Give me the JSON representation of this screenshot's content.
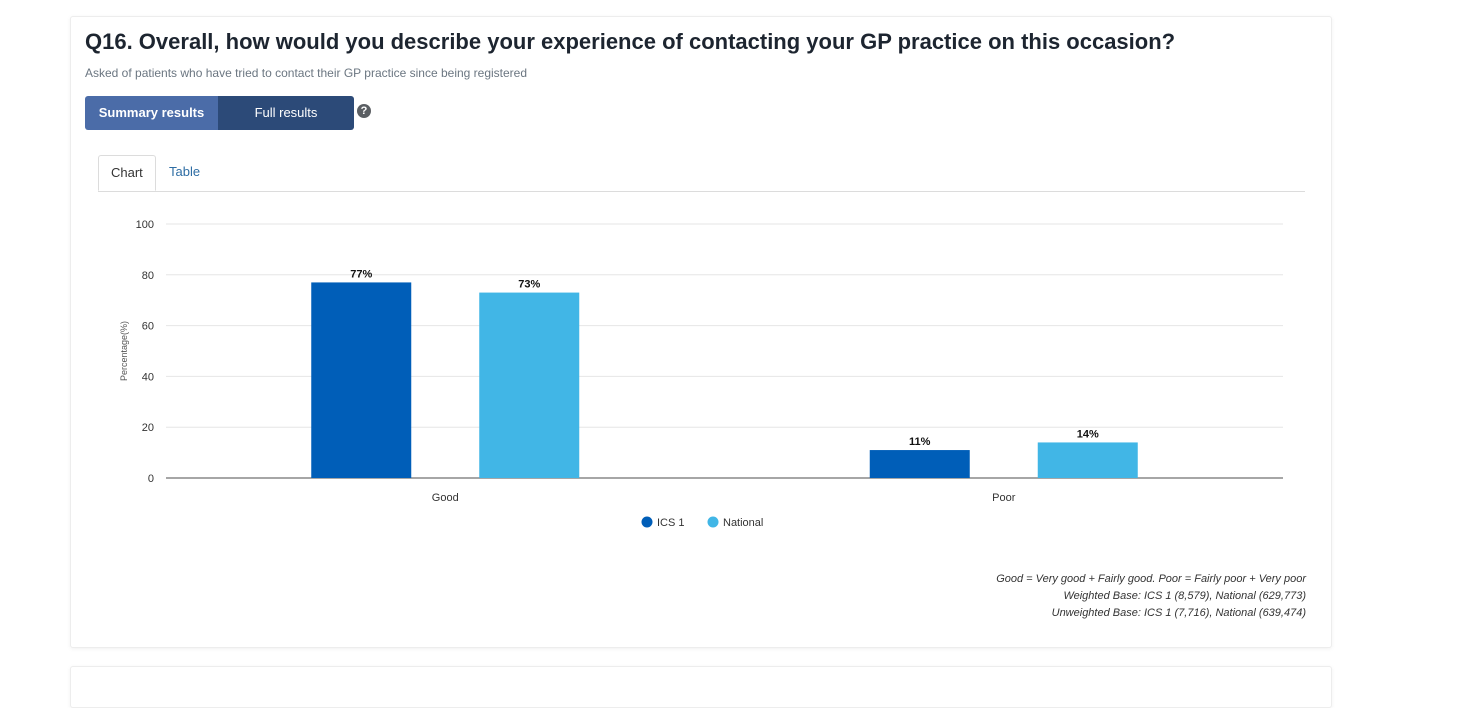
{
  "question": {
    "title": "Q16. Overall, how would you describe your experience of contacting your GP practice on this occasion?",
    "subtitle": "Asked of patients who have tried to contact their GP practice since being registered"
  },
  "toggle": {
    "summary_label": "Summary results",
    "full_label": "Full results",
    "help_icon": "question-circle-icon",
    "help_glyph": "?"
  },
  "tabs": {
    "chart_label": "Chart",
    "table_label": "Table"
  },
  "chart_data": {
    "type": "bar",
    "categories": [
      "Good",
      "Poor"
    ],
    "series": [
      {
        "name": "ICS 1",
        "values": [
          77,
          11
        ],
        "labels": [
          "77%",
          "11%"
        ],
        "color": "#005eb8"
      },
      {
        "name": "National",
        "values": [
          73,
          14
        ],
        "labels": [
          "73%",
          "14%"
        ],
        "color": "#41b6e6"
      }
    ],
    "ylabel": "Percentage(%)",
    "ylim": [
      0,
      100
    ],
    "yticks": [
      0,
      20,
      40,
      60,
      80,
      100
    ],
    "grid": true,
    "legend": "bottom-center"
  },
  "notes": {
    "definition": "Good = Very good + Fairly good. Poor = Fairly poor + Very poor",
    "weighted_base": "Weighted Base: ICS 1 (8,579), National (629,773)",
    "unweighted_base": "Unweighted Base: ICS 1 (7,716), National (639,474)"
  }
}
